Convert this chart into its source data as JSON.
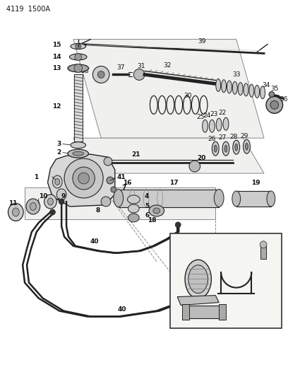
{
  "bg_color": "#ffffff",
  "fig_width": 4.08,
  "fig_height": 5.33,
  "dpi": 100,
  "header": "4119  1500A",
  "lc": "#222222",
  "gray1": "#888888",
  "gray2": "#bbbbbb",
  "gray3": "#555555",
  "font_size": 6.5,
  "label_font_size": 6.5
}
